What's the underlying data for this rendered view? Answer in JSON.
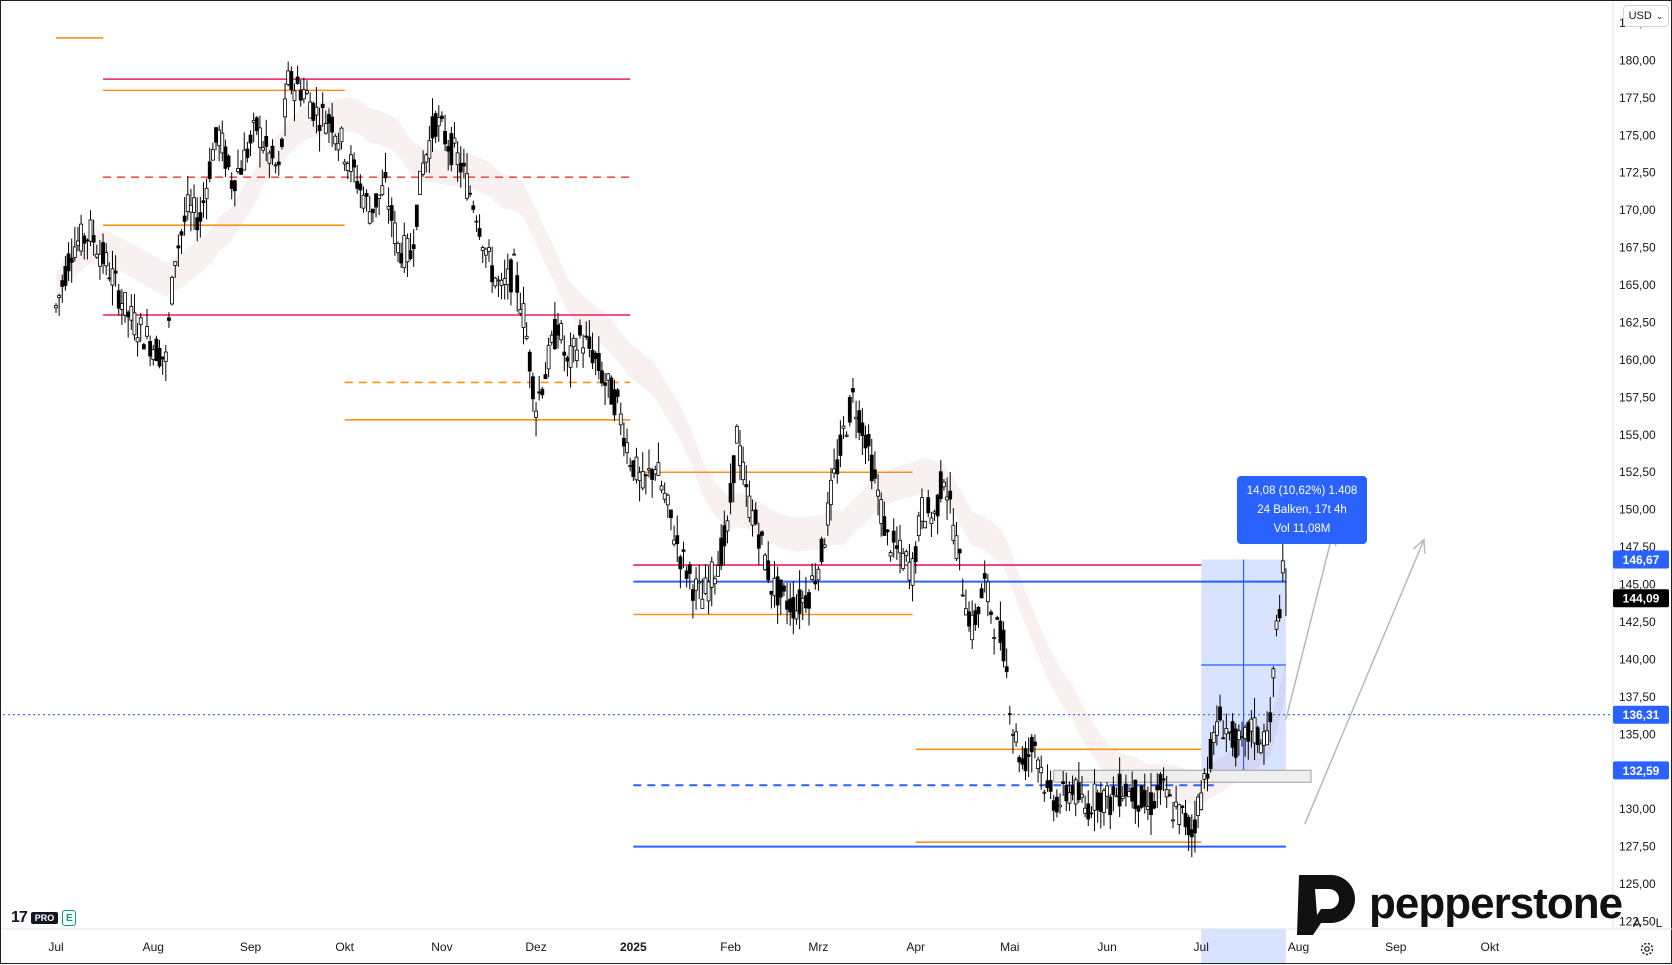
{
  "ui": {
    "currency": "USD",
    "currency_chevron": "chevron-down-icon",
    "auto_scale": "A",
    "log_scale": "L",
    "tv_logo": "17",
    "tv_pro_label": "PRO",
    "tv_e_label": "E",
    "brand_name": "pepperstone",
    "settings_icon": "gear-icon"
  },
  "measure": {
    "line1": "14,08 (10,62%) 1.408",
    "line2": "24 Balken, 17t 4h",
    "line3": "Vol 11,08M"
  },
  "price_badges": [
    {
      "label": "146,67",
      "value": 146.67,
      "color": "#2962ff"
    },
    {
      "label": "144,09",
      "value": 144.09,
      "color": "#000000"
    },
    {
      "label": "136,31",
      "value": 136.31,
      "color": "#2962ff"
    },
    {
      "label": "132,59",
      "value": 132.59,
      "color": "#2962ff"
    }
  ],
  "chart_data": {
    "type": "candlestick",
    "title": "",
    "currency": "USD",
    "y_axis": {
      "ticks": [
        122.5,
        125,
        127.5,
        130,
        132.5,
        135,
        137.5,
        140,
        142.5,
        145,
        147.5,
        150,
        152.5,
        155,
        157.5,
        160,
        162.5,
        165,
        167.5,
        170,
        172.5,
        175,
        177.5,
        180,
        182.5
      ],
      "tick_labels": [
        "122,50",
        "125,00",
        "127,50",
        "130,00",
        "132,50",
        "135,00",
        "137,50",
        "140,00",
        "142,50",
        "145,00",
        "147,50",
        "150,00",
        "152,50",
        "155,00",
        "157,50",
        "160,00",
        "162,50",
        "165,00",
        "167,50",
        "170,00",
        "172,50",
        "175,00",
        "177,50",
        "180,00",
        "182,50"
      ],
      "range": [
        122.0,
        183.5
      ]
    },
    "x_axis": {
      "labels": [
        "Jul",
        "Aug",
        "Sep",
        "Okt",
        "Nov",
        "Dez",
        "2025",
        "Feb",
        "Mrz",
        "Apr",
        "Mai",
        "Jun",
        "Jul",
        "Aug",
        "Sep",
        "Okt"
      ],
      "label_times": [
        "2024-07-01",
        "2024-08-01",
        "2024-09-01",
        "2024-10-01",
        "2024-11-01",
        "2024-12-01",
        "2025-01-01",
        "2025-02-01",
        "2025-03-01",
        "2025-04-01",
        "2025-05-01",
        "2025-06-01",
        "2025-07-01",
        "2025-08-01",
        "2025-09-01",
        "2025-10-01"
      ],
      "range": [
        "2024-07-01",
        "2025-10-31"
      ]
    },
    "price_path": [
      [
        "2024-07-01",
        163.5
      ],
      [
        "2024-07-06",
        167.5
      ],
      [
        "2024-07-12",
        168.5
      ],
      [
        "2024-07-18",
        166.0
      ],
      [
        "2024-07-24",
        163.0
      ],
      [
        "2024-07-30",
        161.5
      ],
      [
        "2024-08-05",
        160.0
      ],
      [
        "2024-08-08",
        167.0
      ],
      [
        "2024-08-12",
        170.0
      ],
      [
        "2024-08-16",
        169.5
      ],
      [
        "2024-08-20",
        174.0
      ],
      [
        "2024-08-22",
        175.0
      ],
      [
        "2024-08-26",
        172.0
      ],
      [
        "2024-08-29",
        173.0
      ],
      [
        "2024-09-03",
        175.5
      ],
      [
        "2024-09-06",
        174.0
      ],
      [
        "2024-09-10",
        172.5
      ],
      [
        "2024-09-13",
        178.5
      ],
      [
        "2024-09-18",
        178.0
      ],
      [
        "2024-09-22",
        176.5
      ],
      [
        "2024-09-27",
        176.0
      ],
      [
        "2024-10-01",
        174.0
      ],
      [
        "2024-10-05",
        172.0
      ],
      [
        "2024-10-09",
        170.0
      ],
      [
        "2024-10-14",
        171.5
      ],
      [
        "2024-10-18",
        167.5
      ],
      [
        "2024-10-22",
        167.0
      ],
      [
        "2024-10-26",
        173.0
      ],
      [
        "2024-10-30",
        176.0
      ],
      [
        "2024-11-03",
        174.5
      ],
      [
        "2024-11-07",
        173.0
      ],
      [
        "2024-11-12",
        170.0
      ],
      [
        "2024-11-16",
        166.5
      ],
      [
        "2024-11-20",
        164.5
      ],
      [
        "2024-11-24",
        166.0
      ],
      [
        "2024-11-27",
        163.0
      ],
      [
        "2024-12-01",
        157.0
      ],
      [
        "2024-12-05",
        160.0
      ],
      [
        "2024-12-08",
        162.5
      ],
      [
        "2024-12-11",
        159.5
      ],
      [
        "2024-12-15",
        161.5
      ],
      [
        "2024-12-19",
        160.5
      ],
      [
        "2024-12-23",
        158.5
      ],
      [
        "2024-12-27",
        157.0
      ],
      [
        "2024-12-31",
        153.5
      ],
      [
        "2025-01-04",
        151.5
      ],
      [
        "2025-01-08",
        153.0
      ],
      [
        "2025-01-12",
        150.0
      ],
      [
        "2025-01-16",
        147.0
      ],
      [
        "2025-01-20",
        145.0
      ],
      [
        "2025-01-23",
        144.0
      ],
      [
        "2025-01-27",
        146.0
      ],
      [
        "2025-01-31",
        148.5
      ],
      [
        "2025-02-03",
        155.0
      ],
      [
        "2025-02-06",
        151.0
      ],
      [
        "2025-02-10",
        148.5
      ],
      [
        "2025-02-14",
        145.0
      ],
      [
        "2025-02-18",
        144.0
      ],
      [
        "2025-02-22",
        143.5
      ],
      [
        "2025-02-26",
        144.5
      ],
      [
        "2025-03-02",
        147.0
      ],
      [
        "2025-03-05",
        151.0
      ],
      [
        "2025-03-09",
        155.0
      ],
      [
        "2025-03-12",
        157.5
      ],
      [
        "2025-03-16",
        155.0
      ],
      [
        "2025-03-19",
        152.0
      ],
      [
        "2025-03-23",
        148.0
      ],
      [
        "2025-03-27",
        147.0
      ],
      [
        "2025-03-31",
        146.0
      ],
      [
        "2025-04-03",
        150.0
      ],
      [
        "2025-04-07",
        149.5
      ],
      [
        "2025-04-10",
        152.5
      ],
      [
        "2025-04-13",
        149.0
      ],
      [
        "2025-04-16",
        145.0
      ],
      [
        "2025-04-19",
        142.0
      ],
      [
        "2025-04-23",
        145.0
      ],
      [
        "2025-04-26",
        142.5
      ],
      [
        "2025-04-29",
        141.0
      ],
      [
        "2025-05-02",
        135.5
      ],
      [
        "2025-05-05",
        133.0
      ],
      [
        "2025-05-09",
        134.5
      ],
      [
        "2025-05-13",
        131.0
      ],
      [
        "2025-05-17",
        130.5
      ],
      [
        "2025-05-21",
        131.5
      ],
      [
        "2025-05-25",
        130.0
      ],
      [
        "2025-05-29",
        131.0
      ],
      [
        "2025-06-02",
        130.5
      ],
      [
        "2025-06-06",
        131.5
      ],
      [
        "2025-06-10",
        131.0
      ],
      [
        "2025-06-14",
        130.0
      ],
      [
        "2025-06-18",
        131.5
      ],
      [
        "2025-06-22",
        130.0
      ],
      [
        "2025-06-25",
        129.5
      ],
      [
        "2025-06-28",
        128.5
      ],
      [
        "2025-07-01",
        131.0
      ],
      [
        "2025-07-03",
        133.0
      ],
      [
        "2025-07-07",
        136.0
      ],
      [
        "2025-07-10",
        135.0
      ],
      [
        "2025-07-14",
        134.0
      ],
      [
        "2025-07-17",
        135.5
      ],
      [
        "2025-07-20",
        134.5
      ],
      [
        "2025-07-23",
        135.5
      ],
      [
        "2025-07-25",
        142.0
      ],
      [
        "2025-07-27",
        145.5
      ],
      [
        "2025-07-28",
        144.09
      ]
    ],
    "annotations": {
      "levels": [
        {
          "value": 181.5,
          "color": "#f7931a",
          "from": "2024-07-01",
          "to": "2024-07-16"
        },
        {
          "value": 178.75,
          "color": "#e91e63",
          "from": "2024-07-16",
          "to": "2024-12-31"
        },
        {
          "value": 178.0,
          "color": "#f7931a",
          "from": "2024-07-16",
          "to": "2024-10-01"
        },
        {
          "value": 172.2,
          "color": "#ef5350",
          "from": "2024-07-16",
          "to": "2024-12-31",
          "dashed": true
        },
        {
          "value": 169.0,
          "color": "#f7931a",
          "from": "2024-07-16",
          "to": "2024-10-01"
        },
        {
          "value": 163.0,
          "color": "#e91e63",
          "from": "2024-07-16",
          "to": "2024-12-31"
        },
        {
          "value": 158.5,
          "color": "#f7931a",
          "from": "2024-10-01",
          "to": "2024-12-31",
          "dashed": true
        },
        {
          "value": 156.0,
          "color": "#f7931a",
          "from": "2024-10-01",
          "to": "2024-12-31"
        },
        {
          "value": 152.5,
          "color": "#f7931a",
          "from": "2025-01-01",
          "to": "2025-03-31"
        },
        {
          "value": 146.3,
          "color": "#e91e63",
          "from": "2025-01-01",
          "to": "2025-07-01"
        },
        {
          "value": 145.2,
          "color": "#2962ff",
          "from": "2025-01-01",
          "to": "2025-07-28"
        },
        {
          "value": 143.0,
          "color": "#f7931a",
          "from": "2025-01-01",
          "to": "2025-03-31"
        },
        {
          "value": 134.0,
          "color": "#f7931a",
          "from": "2025-04-01",
          "to": "2025-07-01"
        },
        {
          "value": 131.6,
          "color": "#2962ff",
          "from": "2025-01-01",
          "to": "2025-07-05",
          "dashed": true
        },
        {
          "value": 127.8,
          "color": "#f7931a",
          "from": "2025-04-01",
          "to": "2025-07-01"
        },
        {
          "value": 127.5,
          "color": "#2962ff",
          "from": "2025-01-01",
          "to": "2025-07-28"
        }
      ],
      "horizontal_dotted": {
        "value": 136.31,
        "color": "#2962ff"
      },
      "range_box": {
        "from": "2025-05-15",
        "to": "2025-08-05",
        "low": 131.8,
        "high": 132.6
      },
      "measure_range": {
        "from": "2025-07-01",
        "to": "2025-07-28",
        "low": 132.59,
        "high": 146.67
      },
      "projection_arrows": [
        {
          "from": [
            "2025-07-28",
            136.0
          ],
          "to": [
            "2025-08-12",
            148.5
          ]
        },
        {
          "from": [
            "2025-08-03",
            129.0
          ],
          "to": [
            "2025-09-10",
            148.0
          ]
        }
      ]
    }
  }
}
